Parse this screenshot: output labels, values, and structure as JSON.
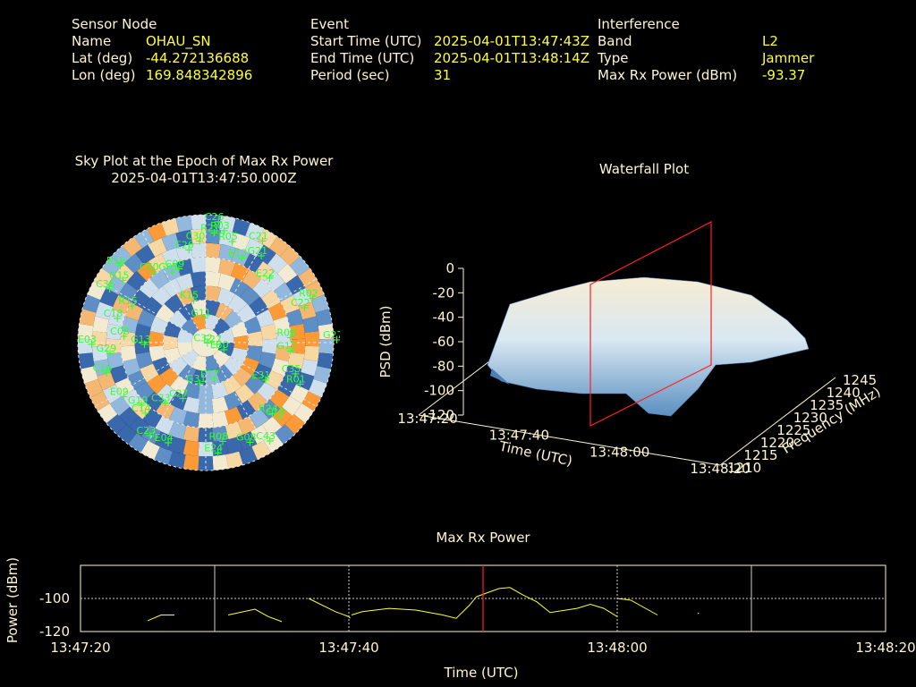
{
  "sensor": {
    "heading": "Sensor Node",
    "name_label": "Name",
    "name": "OHAU_SN",
    "lat_label": "Lat (deg)",
    "lat": "-44.272136688",
    "lon_label": "Lon (deg)",
    "lon": "169.848342896"
  },
  "event": {
    "heading": "Event",
    "start_label": "Start Time (UTC)",
    "start": "2025-04-01T13:47:43Z",
    "end_label": "End Time (UTC)",
    "end": "2025-04-01T13:48:14Z",
    "period_label": "Period (sec)",
    "period": "31"
  },
  "interference": {
    "heading": "Interference",
    "band_label": "Band",
    "band": "L2",
    "type_label": "Type",
    "type": "Jammer",
    "power_label": "Max Rx Power (dBm)",
    "power": "-93.37"
  },
  "colors": {
    "text": "#fff5cf",
    "value": "#ffff33",
    "satellite": "#33ff33",
    "marker": "#ff2020",
    "line": "#ffff33"
  },
  "chart_data": [
    {
      "type": "polar-heatmap",
      "title": "Sky Plot at the Epoch of Max Rx Power",
      "subtitle": "2025-04-01T13:47:50.000Z",
      "satellites": [
        {
          "id": "C26",
          "az": 2,
          "el": 88
        },
        {
          "id": "R03",
          "az": 5,
          "el": 82
        },
        {
          "id": "C21",
          "az": 25,
          "el": 82
        },
        {
          "id": "R05",
          "az": 10,
          "el": 75
        },
        {
          "id": "G21",
          "az": 28,
          "el": 72
        },
        {
          "id": "E13",
          "az": 18,
          "el": 65
        },
        {
          "id": "E22",
          "az": 40,
          "el": 62
        },
        {
          "id": "R02",
          "az": 65,
          "el": 78
        },
        {
          "id": "C22",
          "az": 68,
          "el": 70
        },
        {
          "id": "G27",
          "az": 88,
          "el": 88
        },
        {
          "id": "R09",
          "az": 85,
          "el": 55
        },
        {
          "id": "G17",
          "az": 95,
          "el": 55
        },
        {
          "id": "C35",
          "az": 110,
          "el": 62
        },
        {
          "id": "R01",
          "az": 115,
          "el": 68
        },
        {
          "id": "E31",
          "az": 125,
          "el": 45
        },
        {
          "id": "R24",
          "az": 140,
          "el": 65
        },
        {
          "id": "C19",
          "az": 138,
          "el": 70
        },
        {
          "id": "G08",
          "az": 160,
          "el": 75
        },
        {
          "id": "C43",
          "az": 150,
          "el": 80
        },
        {
          "id": "R08",
          "az": 175,
          "el": 70
        },
        {
          "id": "E24",
          "az": 178,
          "el": 78
        },
        {
          "id": "E04",
          "az": 205,
          "el": 78
        },
        {
          "id": "C23",
          "az": 215,
          "el": 80
        },
        {
          "id": "C14",
          "az": 225,
          "el": 70
        },
        {
          "id": "G19",
          "az": 230,
          "el": 68
        },
        {
          "id": "E09",
          "az": 240,
          "el": 75
        },
        {
          "id": "C27",
          "az": 210,
          "el": 45
        },
        {
          "id": "G31",
          "az": 200,
          "el": 30
        },
        {
          "id": "E17",
          "az": 180,
          "el": 25
        },
        {
          "id": "C32",
          "az": 280,
          "el": 5
        },
        {
          "id": "E27",
          "az": 90,
          "el": 2
        },
        {
          "id": "E30",
          "az": 120,
          "el": 8
        },
        {
          "id": "C16",
          "az": 255,
          "el": 80
        },
        {
          "id": "G29",
          "az": 265,
          "el": 75
        },
        {
          "id": "E03",
          "az": 270,
          "el": 88
        },
        {
          "id": "C08",
          "az": 275,
          "el": 65
        },
        {
          "id": "G13",
          "az": 270,
          "el": 50
        },
        {
          "id": "C18",
          "az": 285,
          "el": 72
        },
        {
          "id": "R15",
          "az": 295,
          "el": 65
        },
        {
          "id": "C36",
          "az": 298,
          "el": 85
        },
        {
          "id": "G15",
          "az": 305,
          "el": 80
        },
        {
          "id": "R16",
          "az": 310,
          "el": 88
        },
        {
          "id": "C60",
          "az": 320,
          "el": 68
        },
        {
          "id": "G05",
          "az": 330,
          "el": 60
        },
        {
          "id": "C09",
          "az": 335,
          "el": 60
        },
        {
          "id": "K15",
          "az": 335,
          "el": 35
        },
        {
          "id": "G11",
          "az": 340,
          "el": 20
        },
        {
          "id": "E26",
          "az": 345,
          "el": 70
        },
        {
          "id": "C30",
          "az": 352,
          "el": 75
        },
        {
          "id": "R21",
          "az": 0,
          "el": 80
        },
        {
          "id": "C33",
          "az": 220,
          "el": 55
        }
      ]
    },
    {
      "type": "surface",
      "title": "Waterfall Plot",
      "xlabel": "Time (UTC)",
      "ylabel": "Frequency (MHz)",
      "zlabel": "PSD (dBm)",
      "x_ticks": [
        "13:47:20",
        "13:47:40",
        "13:48:00",
        "13:48:20"
      ],
      "y_ticks": [
        1210,
        1215,
        1220,
        1225,
        1230,
        1235,
        1240,
        1245
      ],
      "z_ticks": [
        0,
        -20,
        -40,
        -60,
        -80,
        -100,
        -120
      ],
      "zlim": [
        -120,
        0
      ],
      "max_epoch": "13:47:50"
    },
    {
      "type": "line",
      "title": "Max Rx Power",
      "xlabel": "Time (UTC)",
      "ylabel": "Power (dBm)",
      "x_ticks": [
        "13:47:20",
        "13:47:40",
        "13:48:00",
        "13:48:20"
      ],
      "y_ticks": [
        -100,
        -120
      ],
      "xlim_sec": [
        0,
        60
      ],
      "ylim": [
        -120,
        -80
      ],
      "marker_sec": 30,
      "segments": [
        [
          [
            5,
            -113.5
          ],
          [
            6,
            -110
          ],
          [
            7,
            -110
          ]
        ],
        [
          [
            11,
            -110
          ],
          [
            13,
            -106.5
          ],
          [
            14,
            -111
          ],
          [
            15,
            -114
          ]
        ],
        [
          [
            17,
            -100
          ],
          [
            19,
            -108
          ],
          [
            20,
            -111
          ],
          [
            20.1,
            -112
          ]
        ],
        [
          [
            20.2,
            -110
          ],
          [
            21,
            -108
          ],
          [
            23,
            -106
          ],
          [
            25,
            -107
          ],
          [
            27,
            -110
          ],
          [
            28,
            -112
          ],
          [
            29,
            -104
          ],
          [
            29.5,
            -99
          ]
        ],
        [
          [
            29.5,
            -99
          ],
          [
            30.5,
            -96
          ],
          [
            31.2,
            -94
          ],
          [
            32,
            -93.4
          ],
          [
            33,
            -98
          ],
          [
            34,
            -102
          ],
          [
            35,
            -108.5
          ],
          [
            37,
            -106
          ],
          [
            38,
            -103.5
          ],
          [
            39,
            -106
          ],
          [
            40,
            -111
          ]
        ],
        [
          [
            40,
            -100
          ],
          [
            41,
            -101
          ],
          [
            43,
            -110
          ]
        ],
        [
          [
            46,
            -109
          ],
          [
            46.1,
            -109
          ]
        ]
      ]
    }
  ]
}
